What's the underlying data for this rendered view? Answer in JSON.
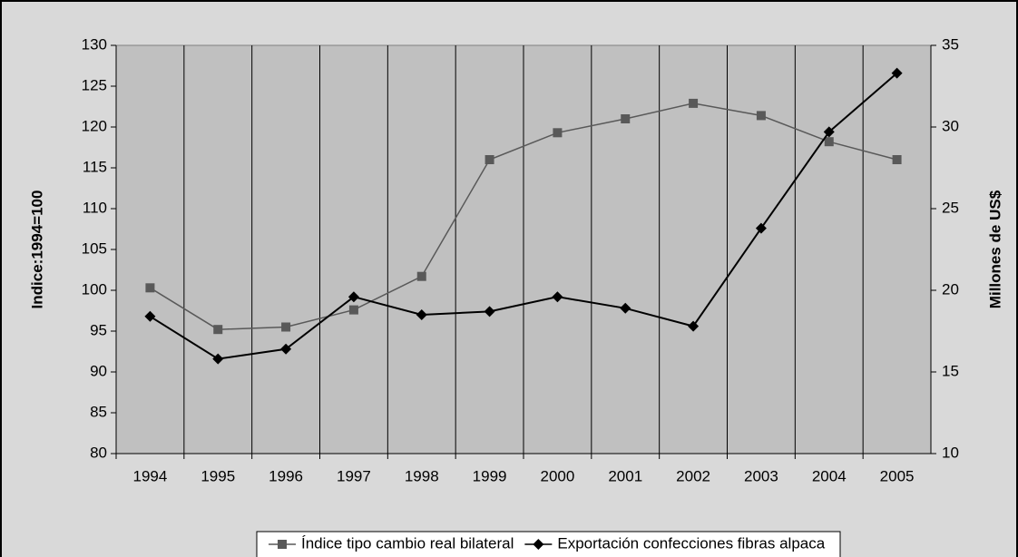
{
  "chart_data": {
    "type": "line",
    "y_label": "Indice:1994=100",
    "y2_label": "Millones de US$",
    "categories": [
      "1994",
      "1995",
      "1996",
      "1997",
      "1998",
      "1999",
      "2000",
      "2001",
      "2002",
      "2003",
      "2004",
      "2005"
    ],
    "series": [
      {
        "name": "Índice tipo cambio real bilateral",
        "color": "#595959",
        "marker": "square",
        "axis": "y",
        "values": [
          100.3,
          95.2,
          95.5,
          97.6,
          101.7,
          116.0,
          119.3,
          121.0,
          122.9,
          121.4,
          118.2,
          116.0
        ]
      },
      {
        "name": "Exportación confecciones fibras alpaca",
        "color": "#000000",
        "marker": "diamond",
        "axis": "y2",
        "values": [
          18.4,
          15.8,
          16.4,
          19.6,
          18.5,
          18.7,
          19.6,
          18.9,
          17.8,
          23.8,
          29.7,
          33.3
        ]
      }
    ],
    "ylim": [
      80,
      130
    ],
    "yticks": [
      80,
      85,
      90,
      95,
      100,
      105,
      110,
      115,
      120,
      125,
      130
    ],
    "y2lim": [
      10,
      35
    ],
    "y2ticks": [
      10,
      15,
      20,
      25,
      30,
      35
    ],
    "grid": true,
    "legend": "bottom"
  }
}
